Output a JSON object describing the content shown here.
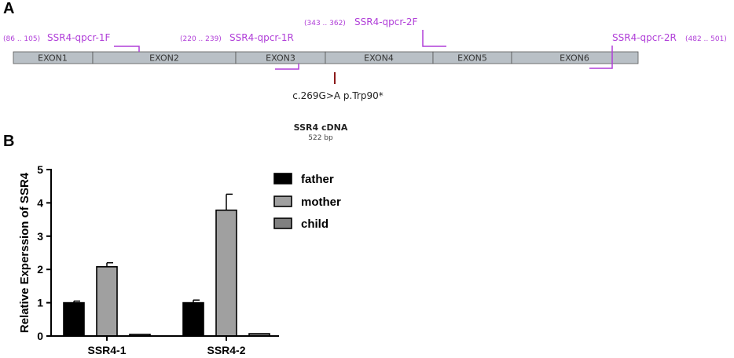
{
  "panel_a": {
    "label": "A",
    "exons": [
      "EXON1",
      "EXON2",
      "EXON3",
      "EXON4",
      "EXON5",
      "EXON6"
    ],
    "primers": [
      {
        "name": "SSR4-qpcr-1F",
        "range": "(86 .. 105)"
      },
      {
        "name": "SSR4-qpcr-1R",
        "range": "(220 .. 239)"
      },
      {
        "name": "SSR4-qpcr-2F",
        "range": "(343 .. 362)"
      },
      {
        "name": "SSR4-qpcr-2R",
        "range": "(482 .. 501)"
      }
    ],
    "mutation": "c.269G>A p.Trp90*",
    "cdna_title": "SSR4 cDNA",
    "cdna_length": "522 bp",
    "colors": {
      "exon_fill": "#b9c0c6",
      "primer": "#b03ed8",
      "mutation": "#8b1a1a"
    }
  },
  "panel_b": {
    "label": "B",
    "colors": {
      "father": "#000000",
      "mother": "#a0a0a0",
      "child": "#808080"
    }
  },
  "chart_data": {
    "type": "bar",
    "categories": [
      "SSR4-1",
      "SSR4-2"
    ],
    "series": [
      {
        "name": "father",
        "values": [
          1.0,
          1.0
        ],
        "errors": [
          0.05,
          0.08
        ]
      },
      {
        "name": "mother",
        "values": [
          2.08,
          3.78
        ],
        "errors": [
          0.12,
          0.48
        ]
      },
      {
        "name": "child",
        "values": [
          0.05,
          0.07
        ],
        "errors": [
          0.01,
          0.01
        ]
      }
    ],
    "title": "",
    "xlabel": "",
    "ylabel": "Relative Experssion of SSR4",
    "ylim": [
      0,
      5
    ],
    "yticks": [
      "0",
      "1",
      "2",
      "3",
      "4",
      "5"
    ],
    "legend_position": "right"
  }
}
